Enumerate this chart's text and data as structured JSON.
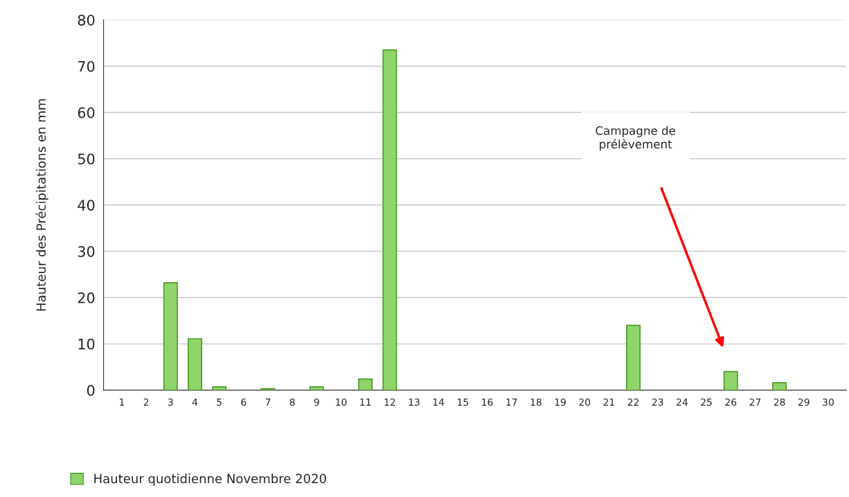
{
  "chart_data": {
    "type": "bar",
    "ylabel": "Hauteur des Précipitations en mm",
    "categories": [
      "1",
      "2",
      "3",
      "4",
      "5",
      "6",
      "7",
      "8",
      "9",
      "10",
      "11",
      "12",
      "13",
      "14",
      "15",
      "16",
      "17",
      "18",
      "19",
      "20",
      "21",
      "22",
      "23",
      "24",
      "25",
      "26",
      "27",
      "28",
      "29",
      "30"
    ],
    "series": [
      {
        "name": "Hauteur quotidienne Novembre 2020",
        "color": "#8fd46a",
        "values": [
          0,
          0,
          23.2,
          11.1,
          0.7,
          0,
          0.3,
          0,
          0.7,
          0,
          2.4,
          73.5,
          0,
          0,
          0,
          0,
          0,
          0,
          0,
          0,
          0,
          14.0,
          0,
          0,
          0,
          4.0,
          0,
          1.6,
          0,
          0
        ]
      }
    ],
    "ylim": [
      0,
      80
    ],
    "yticks": [
      0,
      10,
      20,
      30,
      40,
      50,
      60,
      70,
      80
    ],
    "grid": "y",
    "legend": "bottom left",
    "annotations": [
      "Campagne de\nprélèvement"
    ]
  }
}
